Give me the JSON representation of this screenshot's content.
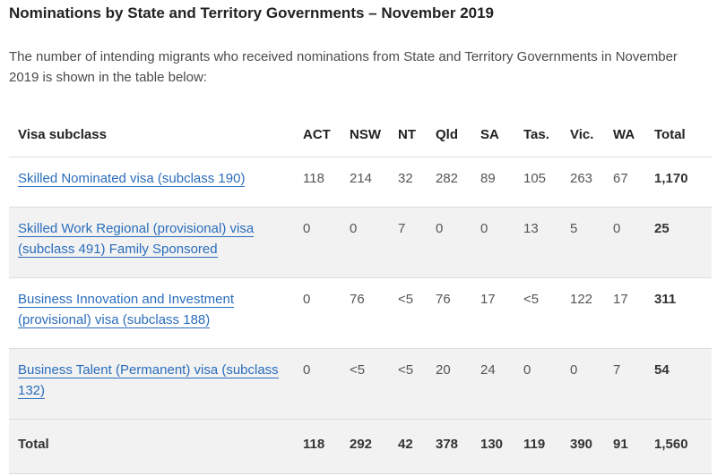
{
  "title": "Nominations by State and Territory Governments – November 2019",
  "intro": "The number of intending migrants who received nominations from State and Territory Governments in November 2019 is shown in the table below:",
  "table": {
    "headers": [
      "Visa subclass",
      "ACT",
      "NSW",
      "NT",
      "Qld",
      "SA",
      "Tas.",
      "Vic.",
      "WA",
      "Total"
    ],
    "rows": [
      {
        "visa": "Skilled Nominated visa (subclass 190)",
        "act": "118",
        "nsw": "214",
        "nt": "32",
        "qld": "282",
        "sa": "89",
        "tas": "105",
        "vic": "263",
        "wa": "67",
        "total": "1,170"
      },
      {
        "visa": "Skilled Work Regional (provisional) visa (subclass 491) Family Sponsored",
        "act": "0",
        "nsw": "0",
        "nt": "7",
        "qld": "0",
        "sa": "0",
        "tas": "13",
        "vic": "5",
        "wa": "0",
        "total": "25"
      },
      {
        "visa": "Business Innovation and Investment (provisional) visa (subclass 188)",
        "act": "0",
        "nsw": "76",
        "nt": "<5",
        "qld": "76",
        "sa": "17",
        "tas": "<5",
        "vic": "122",
        "wa": "17",
        "total": "311"
      },
      {
        "visa": "Business Talent (Permanent) visa (subclass 132)",
        "act": "0",
        "nsw": "<5",
        "nt": "<5",
        "qld": "20",
        "sa": "24",
        "tas": "0",
        "vic": "0",
        "wa": "7",
        "total": "54"
      }
    ],
    "total_row": {
      "label": "Total",
      "act": "118",
      "nsw": "292",
      "nt": "42",
      "qld": "378",
      "sa": "130",
      "tas": "119",
      "vic": "390",
      "wa": "91",
      "total": "1,560"
    }
  },
  "colors": {
    "link": "#2a6dbd",
    "row_alt_bg": "#f2f2f2",
    "divider": "#dcdcdc"
  }
}
